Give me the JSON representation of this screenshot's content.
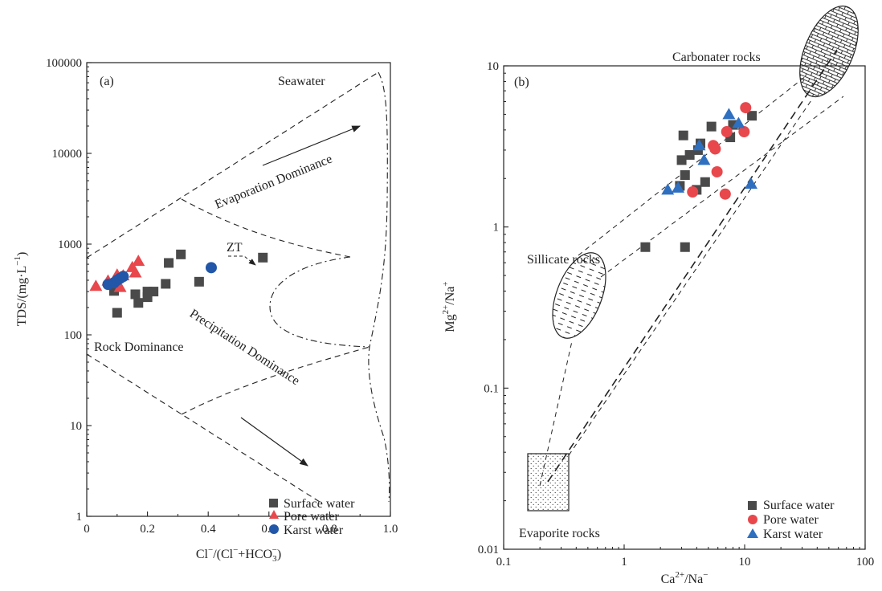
{
  "chart_data": [
    {
      "panel_label": "(a)",
      "type": "scatter",
      "x_scale": "linear",
      "y_scale": "log",
      "xlim": [
        0,
        1.0
      ],
      "ylim": [
        1,
        100000
      ],
      "x_ticks": [
        "0",
        "0.2",
        "0.4",
        "0.6",
        "0.8",
        "1.0"
      ],
      "y_ticks": [
        "1",
        "10",
        "100",
        "1000",
        "10000",
        "100000"
      ],
      "xlabel": {
        "main": "Cl",
        "sup1": "−",
        "mid": "/(Cl",
        "sup2": "−",
        "mid2": "+HCO",
        "sub": "3",
        "sup3": "−",
        "end": ")"
      },
      "ylabel": {
        "main": "TDS/(mg·L",
        "sup": "−1",
        "end": ")"
      },
      "annotations": {
        "seawater": "Seawater",
        "evaporation": "Evaporation Dominance",
        "rock": "Rock Dominance",
        "precipitation": "Precipitation Dominance",
        "zt": "ZT"
      },
      "legend": [
        "Surface water",
        "Pore water",
        "Karst water"
      ],
      "legend_position": "bottom-right",
      "series": [
        {
          "name": "Surface water",
          "marker": "square",
          "color": "#4a4a4a",
          "points": [
            [
              0.09,
              305
            ],
            [
              0.1,
              175
            ],
            [
              0.16,
              280
            ],
            [
              0.17,
              225
            ],
            [
              0.2,
              260
            ],
            [
              0.2,
              300
            ],
            [
              0.22,
              300
            ],
            [
              0.26,
              365
            ],
            [
              0.27,
              620
            ],
            [
              0.31,
              770
            ],
            [
              0.37,
              385
            ],
            [
              0.58,
              710
            ]
          ]
        },
        {
          "name": "Pore water",
          "marker": "triangle",
          "color": "#e8474c",
          "points": [
            [
              0.03,
              345
            ],
            [
              0.07,
              395
            ],
            [
              0.09,
              395
            ],
            [
              0.1,
              460
            ],
            [
              0.11,
              335
            ],
            [
              0.12,
              450
            ],
            [
              0.15,
              555
            ],
            [
              0.16,
              485
            ],
            [
              0.17,
              650
            ]
          ]
        },
        {
          "name": "Karst water",
          "marker": "circle",
          "color": "#2156a8",
          "points": [
            [
              0.07,
              360
            ],
            [
              0.09,
              375
            ],
            [
              0.1,
              400
            ],
            [
              0.11,
              420
            ],
            [
              0.12,
              440
            ],
            [
              0.41,
              550
            ]
          ]
        }
      ]
    },
    {
      "panel_label": "(b)",
      "type": "scatter",
      "x_scale": "log",
      "y_scale": "log",
      "xlim": [
        0.1,
        100
      ],
      "ylim": [
        0.01,
        10
      ],
      "x_ticks": [
        "0.1",
        "1",
        "10",
        "100"
      ],
      "y_ticks": [
        "0.01",
        "0.1",
        "1",
        "10"
      ],
      "xlabel": {
        "main": "Ca",
        "sup1": "2+",
        "mid": "/Na",
        "sup2": "−"
      },
      "ylabel": {
        "main": "Mg",
        "sup1": "2+",
        "mid": "/Na",
        "sup2": "+"
      },
      "annotations": {
        "carbonate": "Carbonater rocks",
        "silicate": "Sillicate rocks",
        "evaporite": "Evaporite rocks"
      },
      "legend": [
        "Surface water",
        "Pore water",
        "Karst water"
      ],
      "legend_position": "bottom-right",
      "series": [
        {
          "name": "Surface water",
          "marker": "square",
          "color": "#4a4a4a",
          "points": [
            [
              1.5,
              0.75
            ],
            [
              3.2,
              0.75
            ],
            [
              2.9,
              1.8
            ],
            [
              3.2,
              2.1
            ],
            [
              3.0,
              2.6
            ],
            [
              3.1,
              3.7
            ],
            [
              3.5,
              2.8
            ],
            [
              4.0,
              1.7
            ],
            [
              4.1,
              3.0
            ],
            [
              4.3,
              3.3
            ],
            [
              4.7,
              1.9
            ],
            [
              5.3,
              4.2
            ],
            [
              7.6,
              3.6
            ],
            [
              8.0,
              4.3
            ],
            [
              11.5,
              4.9
            ]
          ]
        },
        {
          "name": "Pore water",
          "marker": "circle",
          "color": "#e8474c",
          "points": [
            [
              3.7,
              1.65
            ],
            [
              5.5,
              3.2
            ],
            [
              5.7,
              3.05
            ],
            [
              5.9,
              2.2
            ],
            [
              6.9,
              1.6
            ],
            [
              7.1,
              3.9
            ],
            [
              9.9,
              3.9
            ],
            [
              10.2,
              5.5
            ]
          ]
        },
        {
          "name": "Karst water",
          "marker": "triangle",
          "color": "#2f6fc0",
          "points": [
            [
              2.3,
              1.7
            ],
            [
              2.8,
              1.75
            ],
            [
              4.2,
              3.2
            ],
            [
              4.6,
              2.6
            ],
            [
              7.4,
              5.0
            ],
            [
              8.9,
              4.4
            ],
            [
              11.3,
              1.85
            ]
          ]
        }
      ]
    }
  ]
}
